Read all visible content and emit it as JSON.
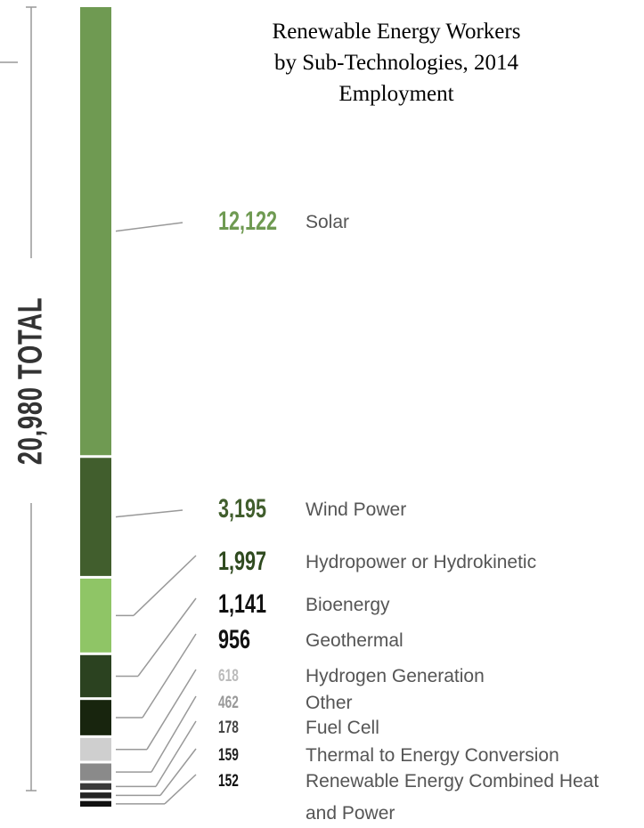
{
  "chart_data": {
    "type": "stacked_bar",
    "title": "Renewable Energy Workers by Sub-Technologies, 2014 Employment",
    "total_label": "20,980 TOTAL",
    "categories": [
      "Solar",
      "Wind Power",
      "Hydropower or Hydrokinetic",
      "Bioenergy",
      "Geothermal",
      "Hydrogen Generation",
      "Other",
      "Fuel Cell",
      "Thermal to Energy Conversion",
      "Renewable Energy Combined Heat and Power"
    ],
    "values": [
      12122,
      3195,
      1997,
      1141,
      956,
      618,
      462,
      178,
      159,
      152
    ],
    "value_labels": [
      "12,122",
      "3,195",
      "1,997",
      "1,141",
      "956",
      "618",
      "462",
      "178",
      "159",
      "152"
    ],
    "colors": [
      "#6f9a52",
      "#415e2d",
      "#8fc566",
      "#2b4220",
      "#18250e",
      "#cfcfcf",
      "#8a8a8a",
      "#3a3a3a",
      "#262626",
      "#111111"
    ],
    "label_colors": [
      "#6f9a52",
      "#415e2d",
      "#2f4a1f",
      "#111111",
      "#111111",
      "#bbbbbb",
      "#999999",
      "#444444",
      "#222222",
      "#111111"
    ]
  }
}
